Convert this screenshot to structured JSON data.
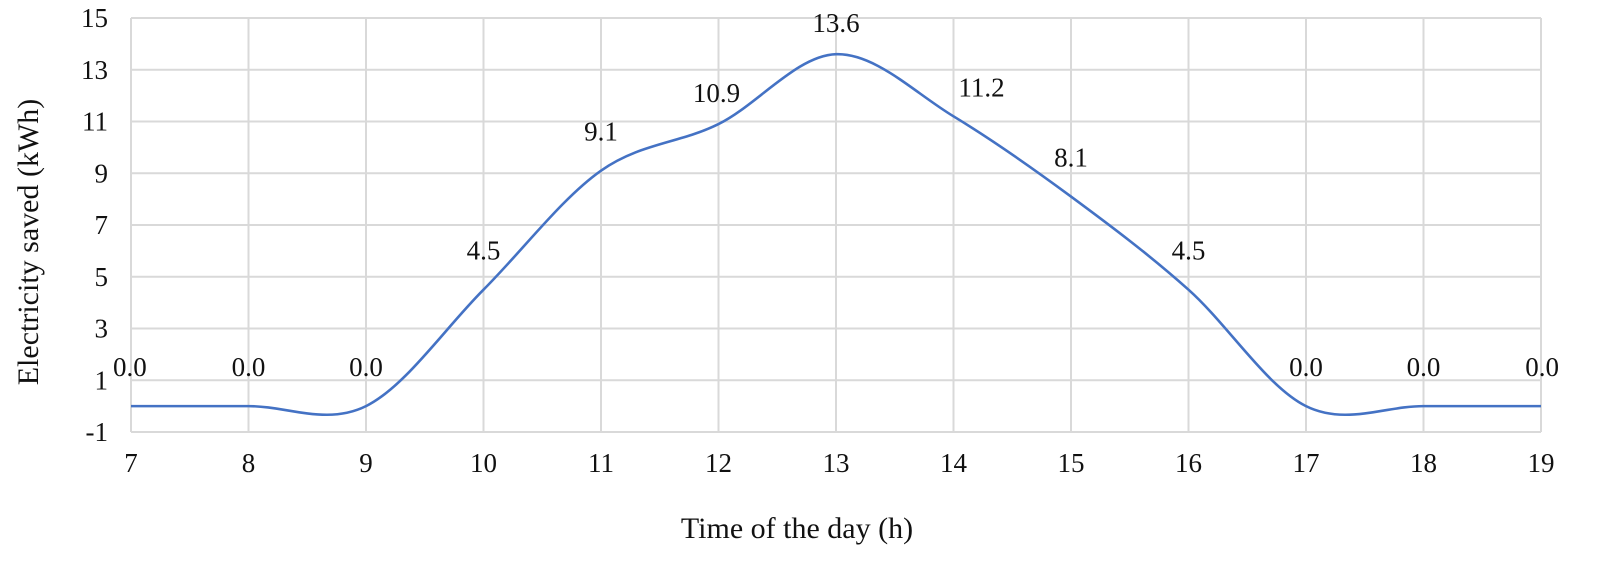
{
  "chart_data": {
    "type": "line",
    "title": "",
    "xlabel": "Time of the day (h)",
    "ylabel": "Electricity saved (kWh)",
    "x": [
      7,
      8,
      9,
      10,
      11,
      12,
      13,
      14,
      15,
      16,
      17,
      18,
      19
    ],
    "series": [
      {
        "values": [
          0.0,
          0.0,
          0.0,
          4.5,
          9.1,
          10.9,
          13.6,
          11.2,
          8.1,
          4.5,
          0.0,
          0.0,
          0.0
        ],
        "data_labels": [
          "0.0",
          "0.0",
          "0.0",
          "4.5",
          "9.1",
          "10.9",
          "13.6",
          "11.2",
          "8.1",
          "4.5",
          "0.0",
          "0.0",
          "0.0"
        ],
        "color": "#4472c4",
        "smooth": true
      }
    ],
    "xlim": [
      7,
      19
    ],
    "ylim": [
      -1,
      15
    ],
    "x_ticks": [
      "7",
      "8",
      "9",
      "10",
      "11",
      "12",
      "13",
      "14",
      "15",
      "16",
      "17",
      "18",
      "19"
    ],
    "y_ticks": [
      "-1",
      "1",
      "3",
      "5",
      "7",
      "9",
      "11",
      "13",
      "15"
    ],
    "grid": true,
    "legend": "none"
  }
}
